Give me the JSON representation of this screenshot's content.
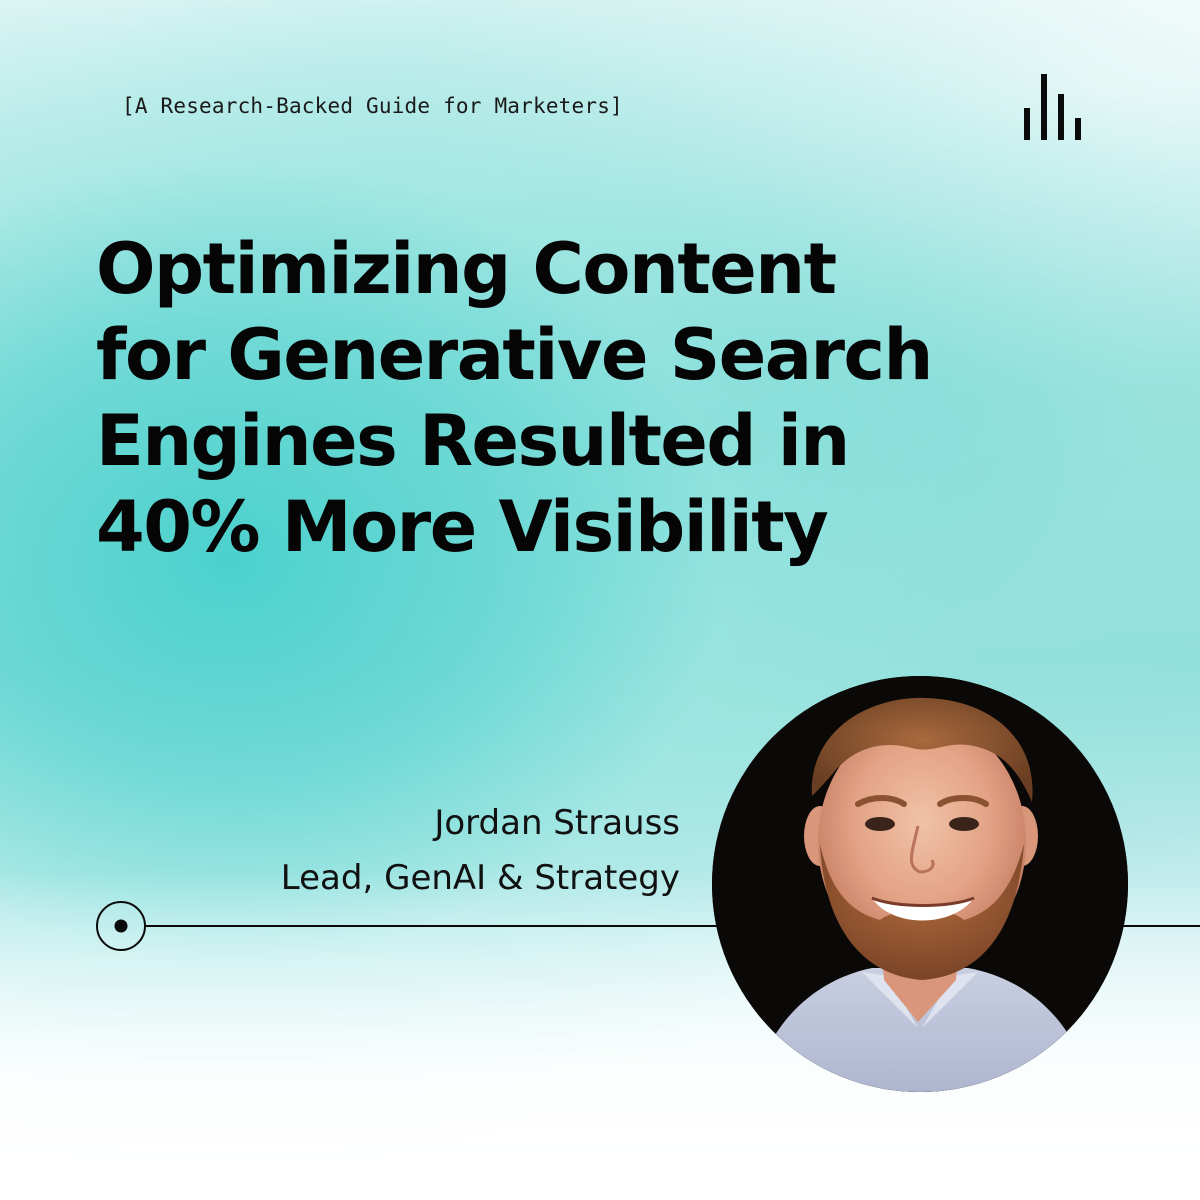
{
  "eyebrow": "[A Research-Backed Guide for Marketers]",
  "headline": {
    "lines": [
      "Optimizing Content",
      "for Generative Search",
      "Engines Resulted in",
      "40% More Visibility"
    ]
  },
  "author": {
    "name": "Jordan Strauss",
    "title": "Lead, GenAI & Strategy"
  },
  "icons": {
    "logo": "bar-chart-logo-icon",
    "timeline_marker": "target-dot-icon",
    "portrait": "author-portrait-photo"
  },
  "colors": {
    "teal": "#5fd5d1",
    "text": "#0a0a0a",
    "white": "#ffffff"
  }
}
